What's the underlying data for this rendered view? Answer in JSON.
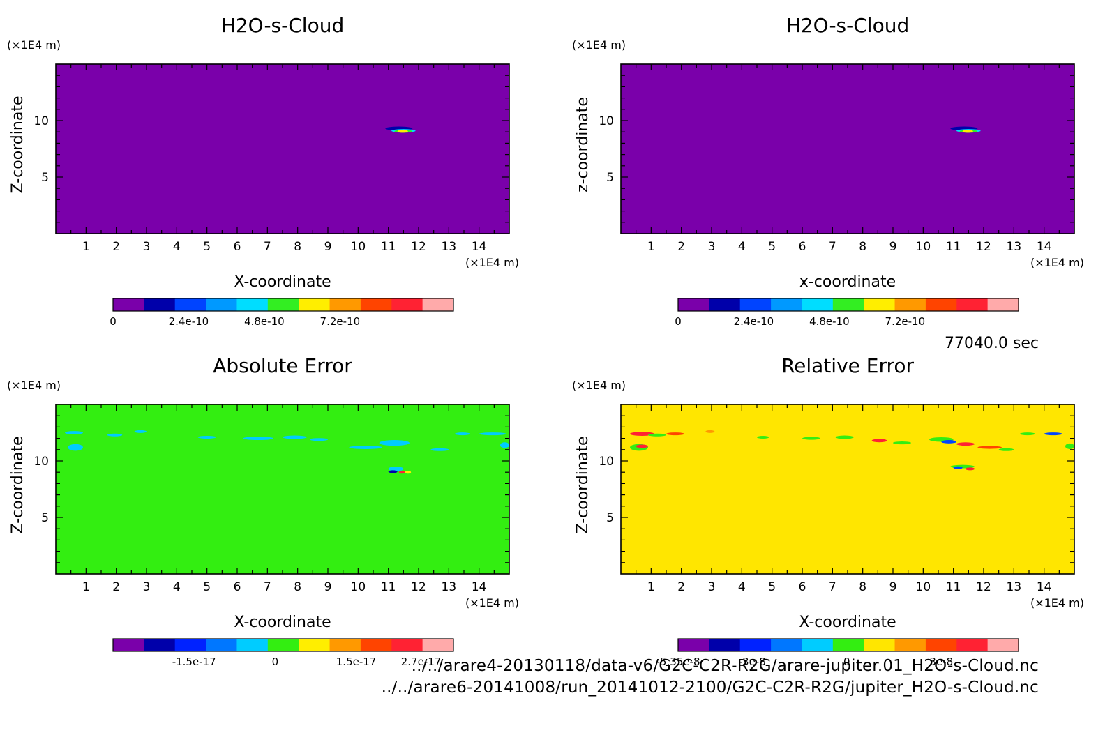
{
  "time_label": "77040.0 sec",
  "files": [
    "../../arare4-20130118/data-v6/G2C-C2R-R2G/arare-jupiter.01_H2O-s-Cloud.nc",
    "../../arare6-20141008/run_20141012-2100/G2C-C2R-R2G/jupiter_H2O-s-Cloud.nc"
  ],
  "chart_data": [
    {
      "type": "heatmap",
      "title": "H2O-s-Cloud",
      "xlabel": "X-coordinate",
      "ylabel": "Z-coordinate",
      "x_unit": "(×1E4 m)",
      "y_unit": "(×1E4 m)",
      "xlim": [
        0,
        15
      ],
      "ylim": [
        0,
        15
      ],
      "x_ticks": [
        1,
        2,
        3,
        4,
        5,
        6,
        7,
        8,
        9,
        10,
        11,
        12,
        13,
        14
      ],
      "y_ticks": [
        5,
        10
      ],
      "background_color": "#7a00aa",
      "colorbar": {
        "colors": [
          "#7a00aa",
          "#0000aa",
          "#0044ff",
          "#0099ff",
          "#00ddff",
          "#33ee22",
          "#ffee00",
          "#ff9900",
          "#ff4400",
          "#ff2233",
          "#ffaaaa"
        ],
        "tick_labels": [
          "0",
          "2.4e-10",
          "4.8e-10",
          "7.2e-10"
        ],
        "tick_values": [
          0,
          2.4e-10,
          4.8e-10,
          7.2e-10
        ],
        "range": [
          0,
          1.08e-09
        ]
      },
      "features": [
        {
          "x": 10.9,
          "z": 9.3,
          "w": 0.9,
          "h": 0.35,
          "color": "#0000aa"
        },
        {
          "x": 11.1,
          "z": 9.1,
          "w": 0.8,
          "h": 0.3,
          "color": "#00ddff"
        },
        {
          "x": 11.2,
          "z": 9.05,
          "w": 0.6,
          "h": 0.2,
          "color": "#33ee22"
        },
        {
          "x": 11.3,
          "z": 9.05,
          "w": 0.35,
          "h": 0.12,
          "color": "#ffee00"
        }
      ]
    },
    {
      "type": "heatmap",
      "title": "H2O-s-Cloud",
      "xlabel": "x-coordinate",
      "ylabel": "z-coordinate",
      "x_unit": "(×1E4 m)",
      "y_unit": "(×1E4 m)",
      "xlim": [
        0,
        15
      ],
      "ylim": [
        0,
        15
      ],
      "x_ticks": [
        1,
        2,
        3,
        4,
        5,
        6,
        7,
        8,
        9,
        10,
        11,
        12,
        13,
        14
      ],
      "y_ticks": [
        5,
        10
      ],
      "background_color": "#7a00aa",
      "colorbar": {
        "colors": [
          "#7a00aa",
          "#0000aa",
          "#0044ff",
          "#0099ff",
          "#00ddff",
          "#33ee22",
          "#ffee00",
          "#ff9900",
          "#ff4400",
          "#ff2233",
          "#ffaaaa"
        ],
        "tick_labels": [
          "0",
          "2.4e-10",
          "4.8e-10",
          "7.2e-10"
        ],
        "tick_values": [
          0,
          2.4e-10,
          4.8e-10,
          7.2e-10
        ],
        "range": [
          0,
          1.08e-09
        ]
      },
      "features": [
        {
          "x": 10.9,
          "z": 9.3,
          "w": 0.9,
          "h": 0.35,
          "color": "#0000aa"
        },
        {
          "x": 11.1,
          "z": 9.1,
          "w": 0.8,
          "h": 0.3,
          "color": "#00ddff"
        },
        {
          "x": 11.2,
          "z": 9.05,
          "w": 0.6,
          "h": 0.2,
          "color": "#33ee22"
        },
        {
          "x": 11.3,
          "z": 9.05,
          "w": 0.35,
          "h": 0.12,
          "color": "#ffee00"
        }
      ]
    },
    {
      "type": "heatmap",
      "title": "Absolute Error",
      "xlabel": "X-coordinate",
      "ylabel": "Z-coordinate",
      "x_unit": "(×1E4 m)",
      "y_unit": "(×1E4 m)",
      "xlim": [
        0,
        15
      ],
      "ylim": [
        0,
        15
      ],
      "x_ticks": [
        1,
        2,
        3,
        4,
        5,
        6,
        7,
        8,
        9,
        10,
        11,
        12,
        13,
        14
      ],
      "y_ticks": [
        5,
        10
      ],
      "background_color": "#33ee11",
      "colorbar": {
        "colors": [
          "#7a00aa",
          "#0000aa",
          "#0022ff",
          "#0077ff",
          "#00ccff",
          "#33ee11",
          "#ffee00",
          "#ff9900",
          "#ff4400",
          "#ff2233",
          "#ffaaaa"
        ],
        "tick_labels": [
          "-1.5e-17",
          "0",
          "1.5e-17",
          "2.7e-17"
        ],
        "tick_values": [
          -1.5e-17,
          0,
          1.5e-17,
          2.7e-17
        ],
        "range": [
          -3e-17,
          3.3e-17
        ]
      },
      "features": [
        {
          "x": 0.3,
          "z": 12.5,
          "w": 0.6,
          "h": 0.3,
          "color": "#00ccff"
        },
        {
          "x": 0.4,
          "z": 11.2,
          "w": 0.5,
          "h": 0.6,
          "color": "#00ccff"
        },
        {
          "x": 1.7,
          "z": 12.3,
          "w": 0.5,
          "h": 0.2,
          "color": "#00ccff"
        },
        {
          "x": 2.6,
          "z": 12.6,
          "w": 0.4,
          "h": 0.2,
          "color": "#00ccff"
        },
        {
          "x": 4.7,
          "z": 12.1,
          "w": 0.6,
          "h": 0.25,
          "color": "#00ccff"
        },
        {
          "x": 6.2,
          "z": 12.0,
          "w": 1.0,
          "h": 0.3,
          "color": "#00ccff"
        },
        {
          "x": 7.5,
          "z": 12.1,
          "w": 0.8,
          "h": 0.3,
          "color": "#00ccff"
        },
        {
          "x": 8.4,
          "z": 11.9,
          "w": 0.6,
          "h": 0.25,
          "color": "#00ccff"
        },
        {
          "x": 9.7,
          "z": 11.2,
          "w": 1.1,
          "h": 0.3,
          "color": "#00ccff"
        },
        {
          "x": 10.7,
          "z": 11.6,
          "w": 1.0,
          "h": 0.5,
          "color": "#00ccff"
        },
        {
          "x": 12.4,
          "z": 11.0,
          "w": 0.6,
          "h": 0.2,
          "color": "#00ccff"
        },
        {
          "x": 13.2,
          "z": 12.4,
          "w": 0.5,
          "h": 0.2,
          "color": "#00ccff"
        },
        {
          "x": 14.0,
          "z": 12.4,
          "w": 0.9,
          "h": 0.25,
          "color": "#00ccff"
        },
        {
          "x": 14.7,
          "z": 11.4,
          "w": 0.3,
          "h": 0.5,
          "color": "#00ccff"
        },
        {
          "x": 11.0,
          "z": 9.3,
          "w": 0.5,
          "h": 0.4,
          "color": "#00ccff"
        },
        {
          "x": 11.0,
          "z": 9.05,
          "w": 0.3,
          "h": 0.15,
          "color": "#0000aa"
        },
        {
          "x": 11.35,
          "z": 9.0,
          "w": 0.2,
          "h": 0.12,
          "color": "#ff2233"
        },
        {
          "x": 11.55,
          "z": 9.0,
          "w": 0.2,
          "h": 0.12,
          "color": "#ffee00"
        }
      ]
    },
    {
      "type": "heatmap",
      "title": "Relative Error",
      "xlabel": "X-coordinate",
      "ylabel": "Z-coordinate",
      "x_unit": "(×1E4 m)",
      "y_unit": "(×1E4 m)",
      "xlim": [
        0,
        15
      ],
      "ylim": [
        0,
        15
      ],
      "x_ticks": [
        1,
        2,
        3,
        4,
        5,
        6,
        7,
        8,
        9,
        10,
        11,
        12,
        13,
        14
      ],
      "y_ticks": [
        5,
        10
      ],
      "background_color": "#ffe600",
      "colorbar": {
        "colors": [
          "#7a00aa",
          "#0000aa",
          "#0022ff",
          "#0077ff",
          "#00ccff",
          "#33ee11",
          "#ffe600",
          "#ff9900",
          "#ff4400",
          "#ff2233",
          "#ffaaaa"
        ],
        "tick_labels": [
          "-5.35e-8",
          "-3e-8",
          "0",
          "3e-8"
        ],
        "tick_values": [
          -5.35e-08,
          -3e-08,
          0,
          3e-08
        ],
        "range": [
          -5.35e-08,
          5.45e-08
        ]
      },
      "features": [
        {
          "x": 0.3,
          "z": 12.4,
          "w": 0.8,
          "h": 0.35,
          "color": "#ff2233"
        },
        {
          "x": 0.9,
          "z": 12.3,
          "w": 0.6,
          "h": 0.25,
          "color": "#33ee11"
        },
        {
          "x": 1.5,
          "z": 12.4,
          "w": 0.6,
          "h": 0.25,
          "color": "#ff4400"
        },
        {
          "x": 0.3,
          "z": 11.2,
          "w": 0.6,
          "h": 0.6,
          "color": "#33ee11"
        },
        {
          "x": 0.5,
          "z": 11.3,
          "w": 0.4,
          "h": 0.3,
          "color": "#ff2233"
        },
        {
          "x": 2.8,
          "z": 12.6,
          "w": 0.3,
          "h": 0.2,
          "color": "#ff9900"
        },
        {
          "x": 4.5,
          "z": 12.1,
          "w": 0.4,
          "h": 0.2,
          "color": "#33ee11"
        },
        {
          "x": 6.0,
          "z": 12.0,
          "w": 0.6,
          "h": 0.25,
          "color": "#33ee11"
        },
        {
          "x": 7.1,
          "z": 12.1,
          "w": 0.6,
          "h": 0.3,
          "color": "#33ee11"
        },
        {
          "x": 8.3,
          "z": 11.8,
          "w": 0.5,
          "h": 0.3,
          "color": "#ff2233"
        },
        {
          "x": 9.0,
          "z": 11.6,
          "w": 0.6,
          "h": 0.25,
          "color": "#33ee11"
        },
        {
          "x": 10.2,
          "z": 11.9,
          "w": 0.8,
          "h": 0.4,
          "color": "#33ee11"
        },
        {
          "x": 10.6,
          "z": 11.7,
          "w": 0.5,
          "h": 0.3,
          "color": "#0044ff"
        },
        {
          "x": 11.1,
          "z": 11.5,
          "w": 0.6,
          "h": 0.3,
          "color": "#ff2233"
        },
        {
          "x": 11.8,
          "z": 11.2,
          "w": 0.8,
          "h": 0.25,
          "color": "#ff4400"
        },
        {
          "x": 12.5,
          "z": 11.0,
          "w": 0.5,
          "h": 0.2,
          "color": "#33ee11"
        },
        {
          "x": 13.2,
          "z": 12.4,
          "w": 0.5,
          "h": 0.2,
          "color": "#33ee11"
        },
        {
          "x": 14.0,
          "z": 12.4,
          "w": 0.6,
          "h": 0.25,
          "color": "#0044ff"
        },
        {
          "x": 14.7,
          "z": 11.3,
          "w": 0.3,
          "h": 0.5,
          "color": "#33ee11"
        },
        {
          "x": 10.9,
          "z": 9.5,
          "w": 0.8,
          "h": 0.3,
          "color": "#33ee11"
        },
        {
          "x": 11.0,
          "z": 9.4,
          "w": 0.3,
          "h": 0.15,
          "color": "#0044ff"
        },
        {
          "x": 11.4,
          "z": 9.3,
          "w": 0.3,
          "h": 0.15,
          "color": "#ff2233"
        }
      ]
    }
  ]
}
